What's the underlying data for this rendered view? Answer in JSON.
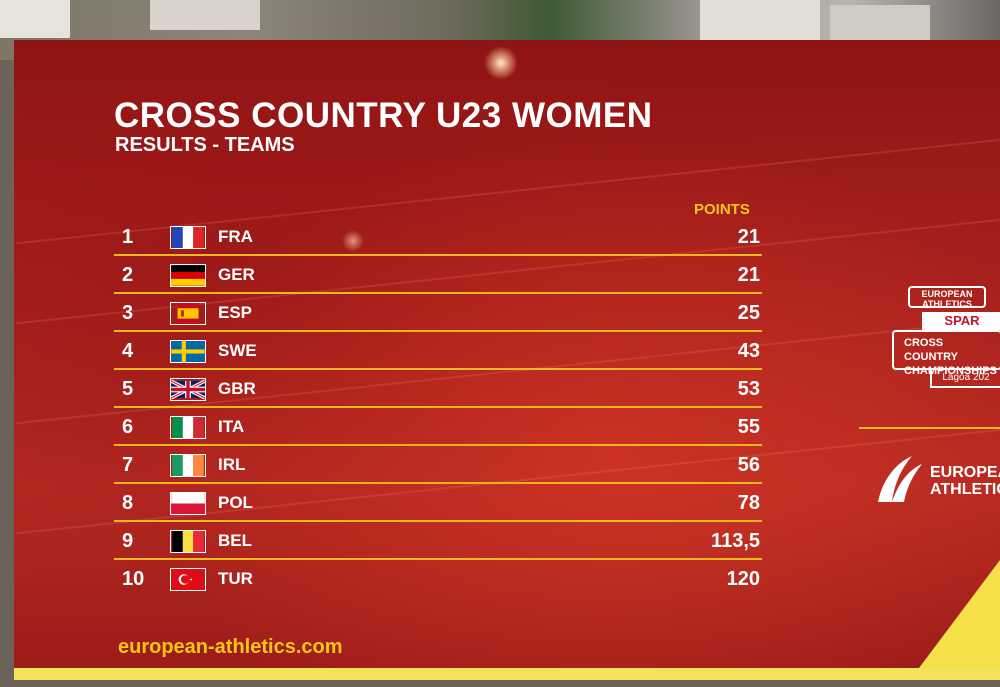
{
  "title": "CROSS COUNTRY U23 WOMEN",
  "subtitle": "RESULTS - TEAMS",
  "points_header": "POINTS",
  "results": [
    {
      "rank": "1",
      "code": "FRA",
      "flag": "france-flag",
      "points": "21"
    },
    {
      "rank": "2",
      "code": "GER",
      "flag": "germany-flag",
      "points": "21"
    },
    {
      "rank": "3",
      "code": "ESP",
      "flag": "spain-flag",
      "points": "25"
    },
    {
      "rank": "4",
      "code": "SWE",
      "flag": "sweden-flag",
      "points": "43"
    },
    {
      "rank": "5",
      "code": "GBR",
      "flag": "uk-flag",
      "points": "53"
    },
    {
      "rank": "6",
      "code": "ITA",
      "flag": "italy-flag",
      "points": "55"
    },
    {
      "rank": "7",
      "code": "IRL",
      "flag": "ireland-flag",
      "points": "56"
    },
    {
      "rank": "8",
      "code": "POL",
      "flag": "poland-flag",
      "points": "78"
    },
    {
      "rank": "9",
      "code": "BEL",
      "flag": "belgium-flag",
      "points": "113,5"
    },
    {
      "rank": "10",
      "code": "TUR",
      "flag": "turkey-flag",
      "points": "120"
    }
  ],
  "website": "european-athletics.com",
  "event_logo": {
    "org": "EUROPEAN ATHLETICS",
    "sponsor": "SPAR",
    "line1": "CROSS COUNTRY",
    "line2": "CHAMPIONSHIPS",
    "place": "Lagoa 202"
  },
  "brand_logo": {
    "line1": "EUROPEAN",
    "line2": "ATHLETICS"
  },
  "colors": {
    "background_red": "#a5201c",
    "accent_gold": "#f0b820",
    "text": "#ffffff",
    "yellow_corner": "#f6e04a"
  }
}
